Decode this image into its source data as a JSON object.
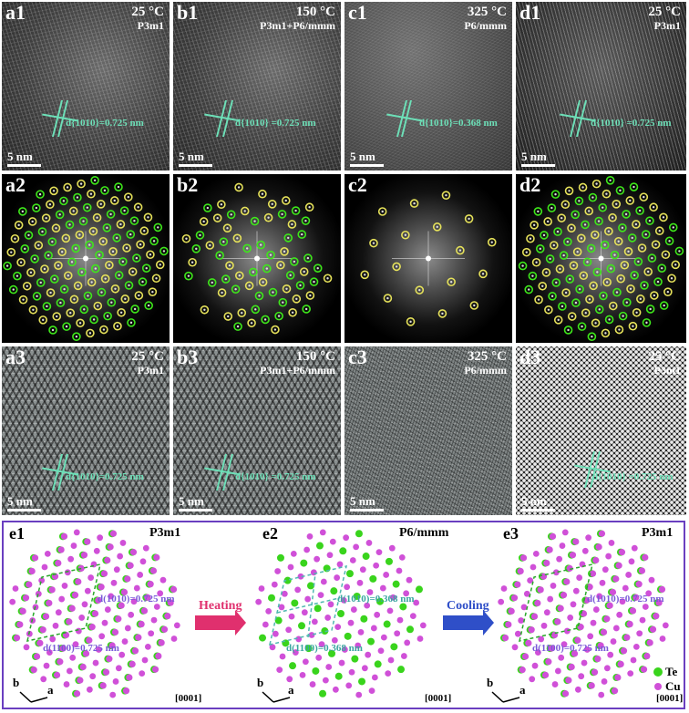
{
  "figure": {
    "rows": [
      {
        "row": 1,
        "type": "HRTEM",
        "panels": [
          {
            "id": "a1",
            "label": "a1",
            "temp": "25 °C",
            "phase": "P3m1",
            "d_label": "d{10̅1̅0}=0.725 nm",
            "d_text": "d{1010}=0.725 nm",
            "scale": "5 nm",
            "style": "a"
          },
          {
            "id": "b1",
            "label": "b1",
            "temp": "150 °C",
            "phase": "P3m1+P6/mmm",
            "d_label": "d{1010} =0.725 nm",
            "d_text": "d{1010} =0.725 nm",
            "scale": "5 nm",
            "style": "a"
          },
          {
            "id": "c1",
            "label": "c1",
            "temp": "325 °C",
            "phase": "P6/mmm",
            "d_label": "d{1010}=0.368 nm",
            "d_text": "d{1010}=0.368 nm",
            "scale": "5 nm",
            "style": "c"
          },
          {
            "id": "d1",
            "label": "d1",
            "temp": "25 °C",
            "phase": "P3m1",
            "d_label": "d{1010} =0.725 nm",
            "d_text": "d{1010} =0.725 nm",
            "scale": "5 nm",
            "style": "d"
          }
        ]
      },
      {
        "row": 2,
        "type": "FFT",
        "panels": [
          {
            "id": "a2",
            "label": "a2",
            "pattern": "full"
          },
          {
            "id": "b2",
            "label": "b2",
            "pattern": "partial"
          },
          {
            "id": "c2",
            "label": "c2",
            "pattern": "yellow-only"
          },
          {
            "id": "d2",
            "label": "d2",
            "pattern": "full"
          }
        ]
      },
      {
        "row": 3,
        "type": "IFFT",
        "panels": [
          {
            "id": "a3",
            "label": "a3",
            "temp": "25 °C",
            "phase": "P3m1",
            "d_text": "d{1010}=0.725 nm",
            "scale": "5 nm",
            "style": ""
          },
          {
            "id": "b3",
            "label": "b3",
            "temp": "150 °C",
            "phase": "P3m1+P6/mmm",
            "d_text": "d{1010} =0.725 nm",
            "scale": "5 nm",
            "style": ""
          },
          {
            "id": "c3",
            "label": "c3",
            "temp": "325 °C",
            "phase": "P6/mmm",
            "d_text": "",
            "scale": "5 nm",
            "style": "noisy"
          },
          {
            "id": "d3",
            "label": "d3",
            "temp": "25 °C",
            "phase": "P3m1",
            "d_text": "d{1010} =0.725 nm",
            "scale": "5 nm",
            "style": "dots"
          }
        ]
      }
    ],
    "structures": {
      "e1": {
        "label": "e1",
        "space_group": "P3m1",
        "d1": "d(1010)=0.725 nm",
        "d2": "d(1100)=0.725 nm",
        "zone": "[0001]",
        "axis_a": "a",
        "axis_b": "b"
      },
      "e2": {
        "label": "e2",
        "space_group": "P6/mmm",
        "d1": "d(1010)=0.368 nm",
        "d2": "d(1100)=0.368 nm",
        "zone": "[0001]",
        "axis_a": "a",
        "axis_b": "b"
      },
      "e3": {
        "label": "e3",
        "space_group": "P3m1",
        "d1": "d(1010)=0.725 nm",
        "d2": "d(1100)=0.725 nm",
        "zone": "[0001]",
        "axis_a": "a",
        "axis_b": "b"
      },
      "arrow_heating": {
        "label": "Heating",
        "color": "#e0306e"
      },
      "arrow_cooling": {
        "label": "Cooling",
        "color": "#2f4fc8"
      },
      "legend": [
        {
          "element": "Te",
          "color": "#39d41c"
        },
        {
          "element": "Cu",
          "color": "#d050d8"
        }
      ]
    },
    "colors": {
      "d_spacing_annotation": "#6de0b8",
      "fft_green_ring": "#3ee81a",
      "fft_yellow_ring": "#e6e25a",
      "frame_border": "#6a3fc0",
      "dash_cell_green": "#2aa82a",
      "dash_cell_cyan": "#4fb8b0",
      "d_text_purple": "#7a5ad8",
      "d_text_teal": "#3aa6a0"
    }
  }
}
